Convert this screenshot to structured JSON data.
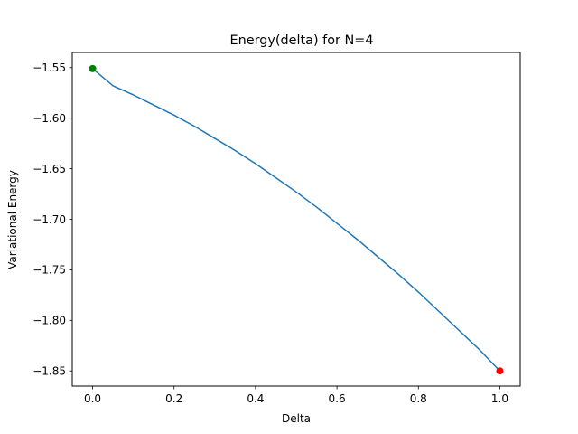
{
  "chart_data": {
    "type": "line",
    "title": "Energy(delta) for N=4",
    "xlabel": "Delta",
    "ylabel": "Variational Energy",
    "xlim": [
      -0.05,
      1.05
    ],
    "ylim": [
      -1.865,
      -1.535
    ],
    "xticks": [
      0.0,
      0.2,
      0.4,
      0.6,
      0.8,
      1.0
    ],
    "xtick_labels": [
      "0.0",
      "0.2",
      "0.4",
      "0.6",
      "0.8",
      "1.0"
    ],
    "yticks": [
      -1.55,
      -1.6,
      -1.65,
      -1.7,
      -1.75,
      -1.8,
      -1.85
    ],
    "ytick_labels": [
      "−1.55",
      "−1.60",
      "−1.65",
      "−1.70",
      "−1.75",
      "−1.80",
      "−1.85"
    ],
    "grid": false,
    "series": [
      {
        "color": "#1f77b4",
        "x": [
          0.0,
          0.05,
          0.1,
          0.15,
          0.2,
          0.25,
          0.3,
          0.35,
          0.4,
          0.45,
          0.5,
          0.55,
          0.6,
          0.65,
          0.7,
          0.75,
          0.8,
          0.85,
          0.9,
          0.95,
          1.0
        ],
        "y": [
          -1.551,
          -1.568,
          -1.577,
          -1.587,
          -1.597,
          -1.608,
          -1.62,
          -1.632,
          -1.645,
          -1.659,
          -1.673,
          -1.688,
          -1.704,
          -1.72,
          -1.737,
          -1.754,
          -1.772,
          -1.791,
          -1.81,
          -1.829,
          -1.85
        ]
      }
    ],
    "markers": [
      {
        "x": 0.0,
        "y": -1.551,
        "color": "#008000"
      },
      {
        "x": 1.0,
        "y": -1.85,
        "color": "#ff0000"
      }
    ]
  }
}
